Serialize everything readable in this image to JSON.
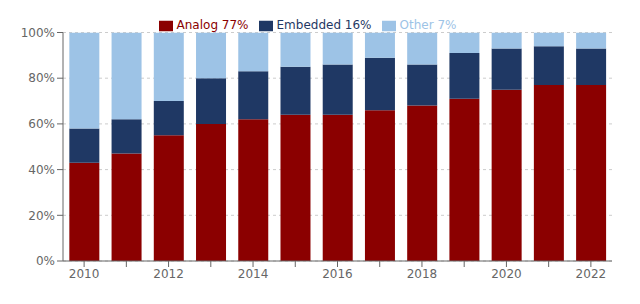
{
  "chart_data": {
    "type": "bar",
    "stacked": true,
    "grid": true,
    "legend": "top",
    "categories": [
      "2010",
      null,
      "2012",
      null,
      "2014",
      null,
      "2016",
      null,
      "2018",
      null,
      "2020",
      null,
      "2022"
    ],
    "series": [
      {
        "name": "Analog 77%",
        "color": "#8B0000",
        "values": [
          43,
          47,
          55,
          60,
          62,
          64,
          64,
          66,
          68,
          71,
          75,
          77,
          77
        ]
      },
      {
        "name": "Embedded 16%",
        "color": "#1F3864",
        "values": [
          15,
          15,
          15,
          20,
          21,
          21,
          22,
          23,
          18,
          20,
          18,
          17,
          16
        ]
      },
      {
        "name": "Other 7%",
        "color": "#9DC3E6",
        "values": [
          42,
          38,
          30,
          20,
          17,
          15,
          14,
          11,
          14,
          9,
          7,
          6,
          7
        ]
      }
    ],
    "ylim": [
      0,
      100
    ],
    "yticks": [
      {
        "value": 0,
        "label": "0%"
      },
      {
        "value": 20,
        "label": "20%"
      },
      {
        "value": 40,
        "label": "40%"
      },
      {
        "value": 60,
        "label": "60%"
      },
      {
        "value": 80,
        "label": "80%"
      },
      {
        "value": 100,
        "label": "100%"
      }
    ]
  }
}
